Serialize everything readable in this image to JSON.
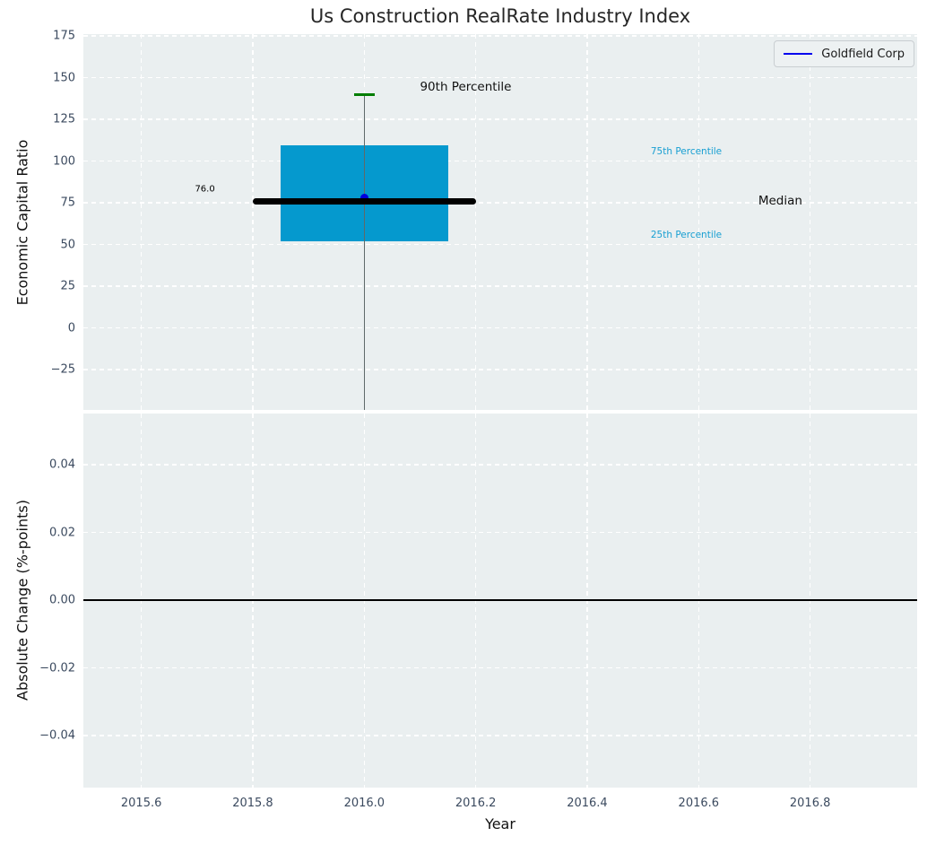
{
  "title": "Us Construction RealRate Industry Index",
  "chart_data": [
    {
      "type": "boxplot",
      "title": "Us Construction RealRate Industry Index",
      "ylabel": "Economic Capital Ratio",
      "xlabel": "",
      "xlim": [
        2015.496,
        2016.992
      ],
      "ylim": [
        -49.2,
        176.1
      ],
      "grid": true,
      "show_xticklabels": false,
      "xticks": [
        {
          "value": 2015.6,
          "label": "2015.6"
        },
        {
          "value": 2015.8,
          "label": "2015.8"
        },
        {
          "value": 2016.0,
          "label": "2016.0"
        },
        {
          "value": 2016.2,
          "label": "2016.2"
        },
        {
          "value": 2016.4,
          "label": "2016.4"
        },
        {
          "value": 2016.6,
          "label": "2016.6"
        },
        {
          "value": 2016.8,
          "label": "2016.8"
        }
      ],
      "yticks": [
        {
          "value": 175,
          "label": "175"
        },
        {
          "value": 150,
          "label": "150"
        },
        {
          "value": 125,
          "label": "125"
        },
        {
          "value": 100,
          "label": "100"
        },
        {
          "value": 75,
          "label": "75"
        },
        {
          "value": 50,
          "label": "50"
        },
        {
          "value": 25,
          "label": "25"
        },
        {
          "value": 0,
          "label": "0"
        },
        {
          "value": -25,
          "label": "−25"
        }
      ],
      "box": {
        "x": 2016.0,
        "q1": 52,
        "median": 76.0,
        "q3": 109.5,
        "p90": 140,
        "whisker_low": -55,
        "whisker_low_clipped": true,
        "box_half_width": 0.15,
        "median_half_width": 0.2,
        "cap_half_width": 0.019,
        "box_color": "#0599ce",
        "median_color": "#000000",
        "whisker_color": "#5f6a6a",
        "cap_color": "#007d00"
      },
      "series": [
        {
          "name": "Goldfield Corp",
          "x": [
            2016.0
          ],
          "y": [
            78
          ],
          "color": "#0000dd",
          "marker": "circle"
        }
      ],
      "annotations": [
        {
          "text": "76.0",
          "x": 2015.732,
          "y": 83,
          "halign": "right",
          "size": 10,
          "color": "#000000"
        },
        {
          "text": "90th Percentile",
          "x": 2016.1,
          "y": 144.4,
          "halign": "left",
          "size": 13.5,
          "color": "#111111"
        },
        {
          "text": "75th Percentile",
          "x": 2016.514,
          "y": 105.9,
          "halign": "left",
          "size": 10.5,
          "color": "#189fd2"
        },
        {
          "text": "Median",
          "x": 2016.707,
          "y": 76,
          "halign": "left",
          "size": 13.5,
          "color": "#111111"
        },
        {
          "text": "25th Percentile",
          "x": 2016.514,
          "y": 55.4,
          "halign": "left",
          "size": 10.5,
          "color": "#189fd2"
        }
      ],
      "legend": {
        "label": "Goldfield Corp",
        "line_color": "#0000ee",
        "position": "upper right"
      }
    },
    {
      "type": "line",
      "ylabel": "Absolute Change (%-points)",
      "xlabel": "Year",
      "xlim": [
        2015.496,
        2016.992
      ],
      "ylim": [
        -0.0553,
        0.0551
      ],
      "grid": true,
      "show_xticklabels": true,
      "xticks": [
        {
          "value": 2015.6,
          "label": "2015.6"
        },
        {
          "value": 2015.8,
          "label": "2015.8"
        },
        {
          "value": 2016.0,
          "label": "2016.0"
        },
        {
          "value": 2016.2,
          "label": "2016.2"
        },
        {
          "value": 2016.4,
          "label": "2016.4"
        },
        {
          "value": 2016.6,
          "label": "2016.6"
        },
        {
          "value": 2016.8,
          "label": "2016.8"
        }
      ],
      "yticks": [
        {
          "value": 0.04,
          "label": "0.04"
        },
        {
          "value": 0.02,
          "label": "0.02"
        },
        {
          "value": 0.0,
          "label": "0.00"
        },
        {
          "value": -0.02,
          "label": "−0.02"
        },
        {
          "value": -0.04,
          "label": "−0.04"
        }
      ],
      "zero_line": {
        "y": 0,
        "color": "#000000"
      },
      "series": []
    }
  ]
}
